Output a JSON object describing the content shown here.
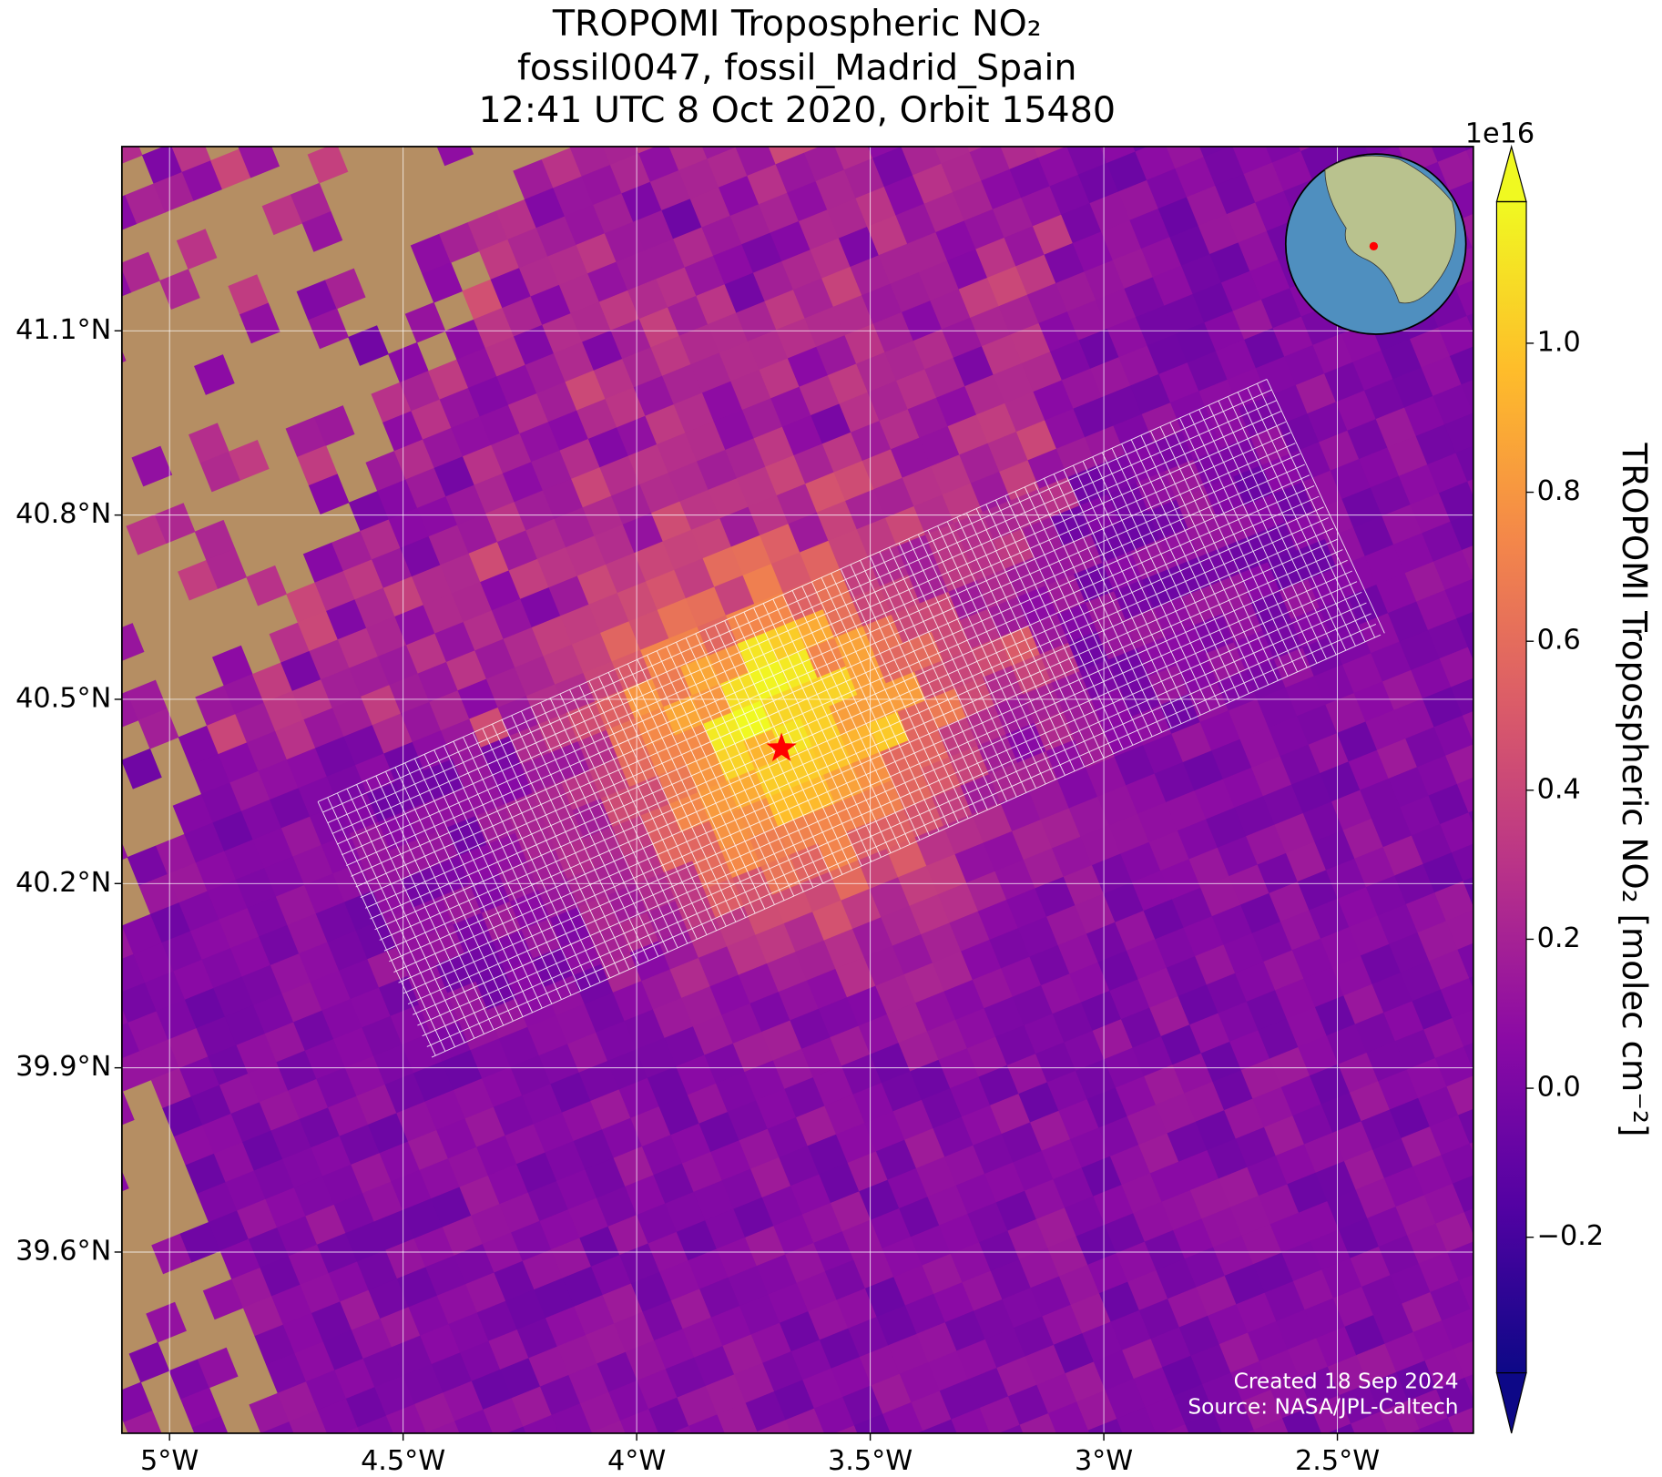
{
  "chart_data": {
    "type": "map",
    "title": [
      "TROPOMI Tropospheric NO₂",
      "fossil0047, fossil_Madrid_Spain",
      "12:41 UTC 8 Oct 2020, Orbit 15480"
    ],
    "xlim": [
      -5.102,
      -2.209
    ],
    "ylim": [
      39.305,
      41.4
    ],
    "xticks": [
      {
        "value": -5,
        "label": "5°W"
      },
      {
        "value": -4.5,
        "label": "4.5°W"
      },
      {
        "value": -4,
        "label": "4°W"
      },
      {
        "value": -3.5,
        "label": "3.5°W"
      },
      {
        "value": -3,
        "label": "3°W"
      },
      {
        "value": -2.5,
        "label": "2.5°W"
      }
    ],
    "yticks": [
      {
        "value": 39.6,
        "label": "39.6°N"
      },
      {
        "value": 39.9,
        "label": "39.9°N"
      },
      {
        "value": 40.2,
        "label": "40.2°N"
      },
      {
        "value": 40.5,
        "label": "40.5°N"
      },
      {
        "value": 40.8,
        "label": "40.8°N"
      },
      {
        "value": 41.1,
        "label": "41.1°N"
      }
    ],
    "grid": true,
    "marker": {
      "lon": -3.69,
      "lat": 40.42,
      "color": "#ff0000"
    },
    "colorbar": {
      "label": "TROPOMI Tropospheric NO₂ [molec cm⁻²]",
      "exponent": "1e16",
      "lim": [
        -0.382,
        1.19
      ],
      "ticks": [
        {
          "value": -0.2,
          "label": "−0.2"
        },
        {
          "value": 0,
          "label": "0.0"
        },
        0.2,
        0.4,
        0.6,
        0.8,
        {
          "value": 1,
          "label": "1.0"
        }
      ],
      "colors": [
        "#0d0887",
        "#5302a3",
        "#8b0aa5",
        "#b83289",
        "#db5c68",
        "#f48849",
        "#febd2a",
        "#f0f921"
      ]
    },
    "credits": [
      "Created 18 Sep 2024",
      "Source: NASA/JPL-Caltech"
    ]
  }
}
